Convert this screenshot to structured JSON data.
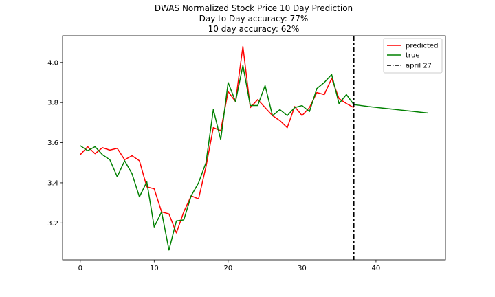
{
  "chart_data": {
    "type": "line",
    "title_lines": [
      "DWAS Normalized Stock Price 10 Day Prediction",
      "Day to Day accuracy: 77%",
      "10 day accuracy: 62%"
    ],
    "xlabel": "",
    "ylabel": "",
    "xlim": [
      -2.4,
      49.4
    ],
    "ylim": [
      3.016,
      4.133
    ],
    "x_ticks": [
      0,
      10,
      20,
      30,
      40
    ],
    "y_ticks": [
      3.2,
      3.4,
      3.6,
      3.8,
      4.0
    ],
    "x_tick_labels": [
      "0",
      "10",
      "20",
      "30",
      "40"
    ],
    "y_tick_labels": [
      "3.2",
      "3.4",
      "3.6",
      "3.8",
      "4.0"
    ],
    "grid": false,
    "legend_position": "top-right",
    "series": [
      {
        "name": "predicted",
        "color": "#ff0000",
        "x": [
          0,
          1,
          2,
          3,
          4,
          5,
          6,
          7,
          8,
          9,
          10,
          11,
          12,
          13,
          14,
          15,
          16,
          17,
          18,
          19,
          20,
          21,
          22,
          23,
          24,
          25,
          26,
          27,
          28,
          29,
          30,
          31,
          32,
          33,
          34,
          35,
          36,
          37
        ],
        "values": [
          3.54,
          3.58,
          3.545,
          3.575,
          3.563,
          3.572,
          3.515,
          3.535,
          3.51,
          3.38,
          3.37,
          3.255,
          3.245,
          3.15,
          3.255,
          3.335,
          3.32,
          3.48,
          3.675,
          3.66,
          3.855,
          3.805,
          4.08,
          3.775,
          3.815,
          3.775,
          3.735,
          3.71,
          3.675,
          3.78,
          3.735,
          3.775,
          3.85,
          3.84,
          3.92,
          3.82,
          3.795,
          3.775
        ]
      },
      {
        "name": "true",
        "color": "#008000",
        "x": [
          0,
          1,
          2,
          3,
          4,
          5,
          6,
          7,
          8,
          9,
          10,
          11,
          12,
          13,
          14,
          15,
          16,
          17,
          18,
          19,
          20,
          21,
          22,
          23,
          24,
          25,
          26,
          27,
          28,
          29,
          30,
          31,
          32,
          33,
          34,
          35,
          36,
          37,
          38,
          39,
          40,
          41,
          42,
          43,
          44,
          45,
          46,
          47
        ],
        "values": [
          3.585,
          3.56,
          3.58,
          3.54,
          3.515,
          3.43,
          3.51,
          3.445,
          3.33,
          3.405,
          3.18,
          3.255,
          3.065,
          3.21,
          3.215,
          3.335,
          3.4,
          3.5,
          3.765,
          3.615,
          3.9,
          3.805,
          3.985,
          3.785,
          3.785,
          3.885,
          3.735,
          3.765,
          3.735,
          3.775,
          3.785,
          3.755,
          3.87,
          3.9,
          3.94,
          3.795,
          3.84,
          3.79,
          3.785,
          3.78,
          3.776,
          3.772,
          3.768,
          3.764,
          3.76,
          3.756,
          3.752,
          3.748
        ]
      }
    ],
    "vertical_line": {
      "x": 37,
      "name": "april 27",
      "color": "#000000",
      "style": "dash-dot"
    }
  }
}
